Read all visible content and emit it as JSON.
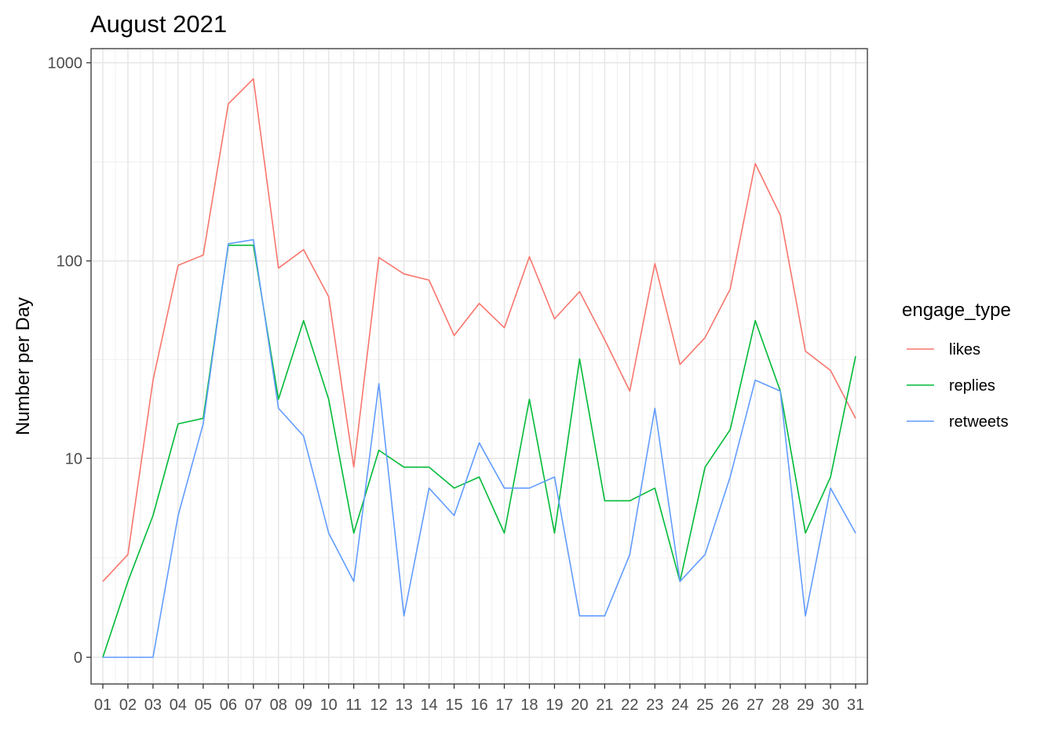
{
  "chart_data": {
    "type": "line",
    "title": "August 2021",
    "xlabel": "",
    "ylabel": "Number per Day",
    "y_scale": "pseudo-log10",
    "y_ticks": [
      0,
      10,
      100,
      1000
    ],
    "ylim": [
      0,
      1000
    ],
    "grid": true,
    "legend_title": "engage_type",
    "legend_position": "right",
    "categories": [
      "01",
      "02",
      "03",
      "04",
      "05",
      "06",
      "07",
      "08",
      "09",
      "10",
      "11",
      "12",
      "13",
      "14",
      "15",
      "16",
      "17",
      "18",
      "19",
      "20",
      "21",
      "22",
      "23",
      "24",
      "25",
      "26",
      "27",
      "28",
      "29",
      "30",
      "31"
    ],
    "series": [
      {
        "name": "likes",
        "color": "#F8766D",
        "values": [
          2,
          3,
          25,
          95,
          107,
          620,
          830,
          92,
          114,
          66,
          9,
          104,
          86,
          80,
          42,
          61,
          46,
          105,
          51,
          70,
          40,
          22,
          97,
          30,
          41,
          72,
          310,
          170,
          35,
          28,
          16
        ]
      },
      {
        "name": "replies",
        "color": "#00BA38",
        "values": [
          0,
          2,
          5,
          15,
          16,
          120,
          120,
          20,
          50,
          20,
          4,
          11,
          9,
          9,
          7,
          8,
          4,
          20,
          4,
          32,
          6,
          6,
          7,
          2,
          9,
          14,
          50,
          22,
          4,
          8,
          33
        ]
      },
      {
        "name": "retweets",
        "color": "#619CFF",
        "values": [
          0,
          0,
          0,
          5,
          15,
          122,
          128,
          18,
          13,
          4,
          2,
          24,
          1,
          7,
          5,
          12,
          7,
          7,
          8,
          1,
          1,
          3,
          18,
          2,
          3,
          8,
          25,
          22,
          1,
          7,
          4
        ]
      }
    ]
  }
}
